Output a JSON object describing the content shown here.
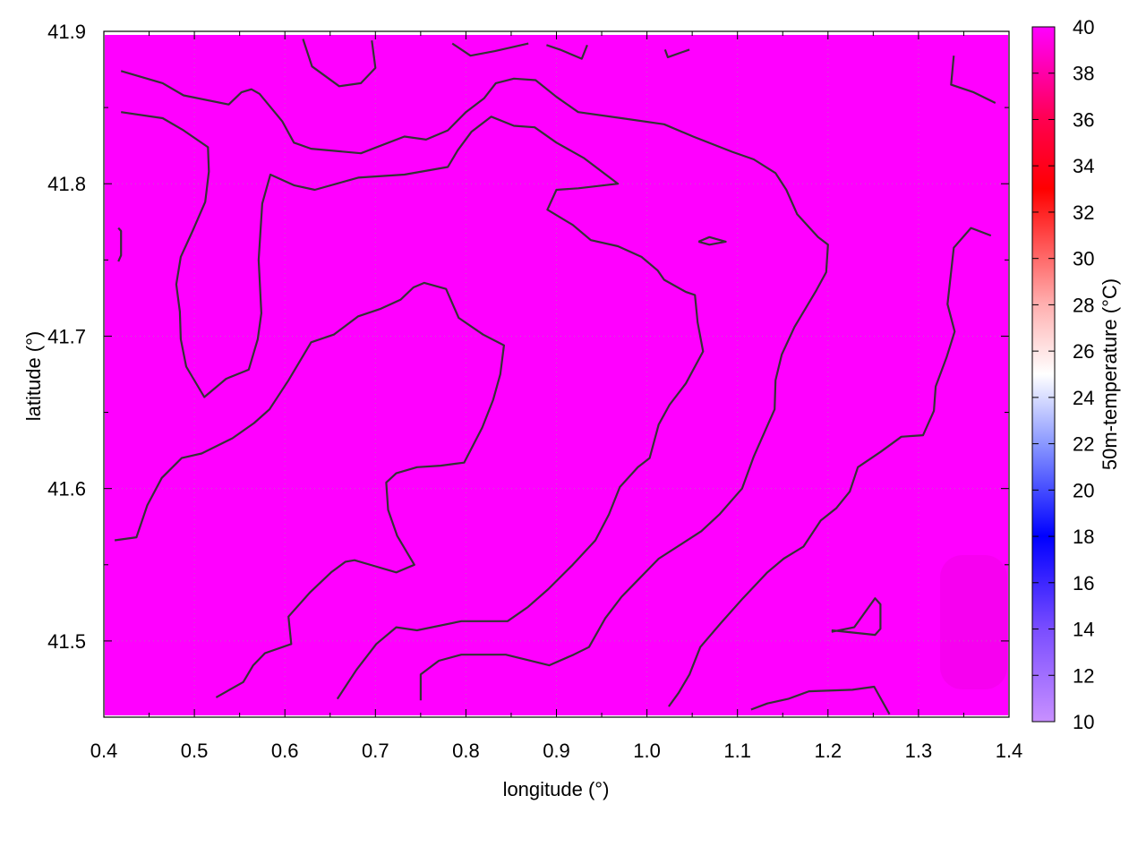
{
  "chart_data": {
    "type": "heatmap",
    "xlabel": "longitude (°)",
    "ylabel": "latitude (°)",
    "colorbar_label": "50m-temperature (°C)",
    "xlim": [
      0.4,
      1.4
    ],
    "ylim": [
      41.45,
      41.9
    ],
    "zlim": [
      10,
      40
    ],
    "grid": true,
    "xticks": [
      "0.4",
      "0.5",
      "0.6",
      "0.7",
      "0.8",
      "0.9",
      "1.0",
      "1.1",
      "1.2",
      "1.3",
      "1.4"
    ],
    "yticks": [
      "41.5",
      "41.6",
      "41.7",
      "41.8",
      "41.9"
    ],
    "colorbar_ticks": [
      "10",
      "12",
      "14",
      "16",
      "18",
      "20",
      "22",
      "24",
      "26",
      "28",
      "30",
      "32",
      "34",
      "36",
      "38",
      "40"
    ],
    "colormap": [
      {
        "value": 10,
        "color": "#c890ff"
      },
      {
        "value": 14,
        "color": "#7a4dff"
      },
      {
        "value": 18,
        "color": "#0000ff"
      },
      {
        "value": 22,
        "color": "#8a98ff"
      },
      {
        "value": 25,
        "color": "#ffffff"
      },
      {
        "value": 28,
        "color": "#ffb0b0"
      },
      {
        "value": 33,
        "color": "#ff0000"
      },
      {
        "value": 36,
        "color": "#ff0050"
      },
      {
        "value": 40,
        "color": "#ff00ff"
      }
    ],
    "field_value_approx": 40,
    "field_color": "#ff00ff",
    "contour_color": "#333333",
    "contours": [
      [
        [
          0.419,
          41.874
        ],
        [
          0.465,
          41.866
        ],
        [
          0.488,
          41.858
        ],
        [
          0.538,
          41.852
        ],
        [
          0.552,
          41.86
        ],
        [
          0.563,
          41.862
        ],
        [
          0.572,
          41.859
        ],
        [
          0.597,
          41.841
        ],
        [
          0.61,
          41.827
        ],
        [
          0.629,
          41.823
        ],
        [
          0.684,
          41.82
        ],
        [
          0.732,
          41.831
        ],
        [
          0.756,
          41.829
        ],
        [
          0.78,
          41.835
        ],
        [
          0.8,
          41.847
        ],
        [
          0.82,
          41.856
        ],
        [
          0.833,
          41.866
        ],
        [
          0.853,
          41.869
        ],
        [
          0.877,
          41.868
        ],
        [
          0.9,
          41.857
        ],
        [
          0.924,
          41.847
        ],
        [
          0.972,
          41.843
        ],
        [
          1.019,
          41.839
        ],
        [
          1.051,
          41.831
        ],
        [
          1.094,
          41.821
        ],
        [
          1.118,
          41.816
        ],
        [
          1.142,
          41.807
        ],
        [
          1.154,
          41.796
        ],
        [
          1.166,
          41.78
        ],
        [
          1.189,
          41.765
        ],
        [
          1.2,
          41.76
        ],
        [
          1.198,
          41.742
        ],
        [
          1.187,
          41.73
        ],
        [
          1.163,
          41.706
        ],
        [
          1.149,
          41.688
        ],
        [
          1.142,
          41.671
        ],
        [
          1.141,
          41.652
        ],
        [
          1.118,
          41.621
        ],
        [
          1.105,
          41.6
        ],
        [
          1.08,
          41.583
        ],
        [
          1.06,
          41.572
        ],
        [
          1.013,
          41.554
        ],
        [
          0.99,
          41.54
        ],
        [
          0.972,
          41.529
        ],
        [
          0.954,
          41.515
        ],
        [
          0.936,
          41.496
        ],
        [
          0.919,
          41.491
        ],
        [
          0.892,
          41.484
        ],
        [
          0.844,
          41.491
        ],
        [
          0.795,
          41.491
        ],
        [
          0.77,
          41.487
        ],
        [
          0.75,
          41.478
        ],
        [
          0.75,
          41.461
        ]
      ],
      [
        [
          0.419,
          41.847
        ],
        [
          0.465,
          41.843
        ],
        [
          0.488,
          41.835
        ],
        [
          0.515,
          41.824
        ],
        [
          0.516,
          41.808
        ],
        [
          0.512,
          41.788
        ],
        [
          0.498,
          41.769
        ],
        [
          0.485,
          41.752
        ],
        [
          0.48,
          41.734
        ],
        [
          0.484,
          41.716
        ],
        [
          0.485,
          41.698
        ],
        [
          0.491,
          41.68
        ],
        [
          0.511,
          41.66
        ],
        [
          0.535,
          41.672
        ],
        [
          0.56,
          41.678
        ],
        [
          0.57,
          41.698
        ],
        [
          0.574,
          41.715
        ],
        [
          0.571,
          41.75
        ],
        [
          0.575,
          41.787
        ],
        [
          0.584,
          41.806
        ],
        [
          0.61,
          41.799
        ],
        [
          0.633,
          41.796
        ],
        [
          0.681,
          41.804
        ],
        [
          0.732,
          41.806
        ],
        [
          0.78,
          41.811
        ],
        [
          0.791,
          41.822
        ],
        [
          0.806,
          41.834
        ],
        [
          0.828,
          41.844
        ],
        [
          0.853,
          41.838
        ],
        [
          0.876,
          41.837
        ],
        [
          0.9,
          41.827
        ],
        [
          0.93,
          41.817
        ],
        [
          0.968,
          41.8
        ],
        [
          0.924,
          41.797
        ],
        [
          0.9,
          41.796
        ],
        [
          0.89,
          41.783
        ],
        [
          0.918,
          41.773
        ],
        [
          0.938,
          41.763
        ],
        [
          0.968,
          41.759
        ],
        [
          0.994,
          41.752
        ],
        [
          1.012,
          41.743
        ],
        [
          1.019,
          41.737
        ],
        [
          1.043,
          41.729
        ],
        [
          1.053,
          41.727
        ],
        [
          1.056,
          41.709
        ],
        [
          1.062,
          41.69
        ],
        [
          1.043,
          41.669
        ],
        [
          1.025,
          41.655
        ],
        [
          1.013,
          41.642
        ],
        [
          1.003,
          41.62
        ],
        [
          0.99,
          41.614
        ],
        [
          0.97,
          41.601
        ],
        [
          0.958,
          41.583
        ],
        [
          0.943,
          41.566
        ],
        [
          0.918,
          41.55
        ],
        [
          0.891,
          41.534
        ],
        [
          0.868,
          41.522
        ],
        [
          0.846,
          41.513
        ],
        [
          0.795,
          41.513
        ],
        [
          0.746,
          41.507
        ],
        [
          0.723,
          41.509
        ],
        [
          0.701,
          41.498
        ],
        [
          0.679,
          41.481
        ],
        [
          0.658,
          41.462
        ]
      ],
      [
        [
          0.412,
          41.566
        ],
        [
          0.436,
          41.568
        ],
        [
          0.448,
          41.589
        ],
        [
          0.464,
          41.607
        ],
        [
          0.486,
          41.62
        ],
        [
          0.508,
          41.623
        ],
        [
          0.542,
          41.633
        ],
        [
          0.566,
          41.643
        ],
        [
          0.583,
          41.652
        ],
        [
          0.604,
          41.671
        ],
        [
          0.629,
          41.696
        ],
        [
          0.654,
          41.701
        ],
        [
          0.681,
          41.713
        ],
        [
          0.706,
          41.718
        ],
        [
          0.728,
          41.724
        ],
        [
          0.742,
          41.732
        ],
        [
          0.754,
          41.735
        ],
        [
          0.778,
          41.731
        ],
        [
          0.792,
          41.712
        ],
        [
          0.819,
          41.701
        ],
        [
          0.842,
          41.694
        ],
        [
          0.838,
          41.675
        ],
        [
          0.83,
          41.658
        ],
        [
          0.818,
          41.64
        ],
        [
          0.798,
          41.617
        ],
        [
          0.772,
          41.615
        ],
        [
          0.746,
          41.614
        ],
        [
          0.723,
          41.61
        ],
        [
          0.712,
          41.604
        ],
        [
          0.714,
          41.586
        ],
        [
          0.724,
          41.569
        ],
        [
          0.743,
          41.55
        ],
        [
          0.723,
          41.545
        ],
        [
          0.7,
          41.549
        ],
        [
          0.677,
          41.553
        ],
        [
          0.667,
          41.552
        ],
        [
          0.651,
          41.545
        ],
        [
          0.628,
          41.532
        ],
        [
          0.604,
          41.516
        ],
        [
          0.607,
          41.498
        ],
        [
          0.578,
          41.492
        ],
        [
          0.565,
          41.484
        ],
        [
          0.554,
          41.473
        ],
        [
          0.524,
          41.463
        ]
      ],
      [
        [
          1.38,
          41.766
        ],
        [
          1.358,
          41.771
        ],
        [
          1.339,
          41.758
        ],
        [
          1.332,
          41.721
        ],
        [
          1.34,
          41.703
        ],
        [
          1.331,
          41.686
        ],
        [
          1.319,
          41.667
        ],
        [
          1.317,
          41.651
        ],
        [
          1.305,
          41.635
        ],
        [
          1.281,
          41.634
        ],
        [
          1.258,
          41.624
        ],
        [
          1.233,
          41.614
        ],
        [
          1.224,
          41.598
        ],
        [
          1.209,
          41.587
        ],
        [
          1.192,
          41.579
        ],
        [
          1.173,
          41.562
        ],
        [
          1.151,
          41.554
        ],
        [
          1.133,
          41.545
        ],
        [
          1.106,
          41.528
        ],
        [
          1.082,
          41.512
        ],
        [
          1.059,
          41.496
        ],
        [
          1.047,
          41.478
        ],
        [
          1.035,
          41.466
        ],
        [
          1.024,
          41.457
        ]
      ],
      [
        [
          1.115,
          41.455
        ],
        [
          1.133,
          41.459
        ],
        [
          1.156,
          41.462
        ],
        [
          1.179,
          41.467
        ],
        [
          1.227,
          41.468
        ],
        [
          1.251,
          41.47
        ],
        [
          1.268,
          41.452
        ]
      ],
      [
        [
          1.204,
          41.507
        ],
        [
          1.252,
          41.504
        ],
        [
          1.258,
          41.508
        ],
        [
          1.258,
          41.524
        ],
        [
          1.252,
          41.528
        ],
        [
          1.229,
          41.509
        ],
        [
          1.204,
          41.506
        ]
      ],
      [
        [
          1.339,
          41.884
        ],
        [
          1.336,
          41.865
        ],
        [
          1.361,
          41.86
        ],
        [
          1.385,
          41.853
        ]
      ],
      [
        [
          0.62,
          41.895
        ],
        [
          0.63,
          41.877
        ],
        [
          0.66,
          41.864
        ],
        [
          0.684,
          41.866
        ],
        [
          0.7,
          41.876
        ],
        [
          0.696,
          41.894
        ]
      ],
      [
        [
          0.785,
          41.892
        ],
        [
          0.805,
          41.884
        ],
        [
          0.832,
          41.887
        ],
        [
          0.869,
          41.892
        ]
      ],
      [
        [
          0.889,
          41.891
        ],
        [
          0.904,
          41.888
        ],
        [
          0.928,
          41.882
        ],
        [
          0.934,
          41.891
        ]
      ],
      [
        [
          1.02,
          41.888
        ],
        [
          1.023,
          41.883
        ],
        [
          1.047,
          41.888
        ]
      ],
      [
        [
          1.057,
          41.762
        ],
        [
          1.069,
          41.765
        ],
        [
          1.087,
          41.762
        ],
        [
          1.069,
          41.76
        ],
        [
          1.057,
          41.762
        ]
      ],
      [
        [
          0.416,
          41.771
        ],
        [
          0.419,
          41.769
        ],
        [
          0.419,
          41.753
        ],
        [
          0.416,
          41.749
        ]
      ]
    ]
  }
}
